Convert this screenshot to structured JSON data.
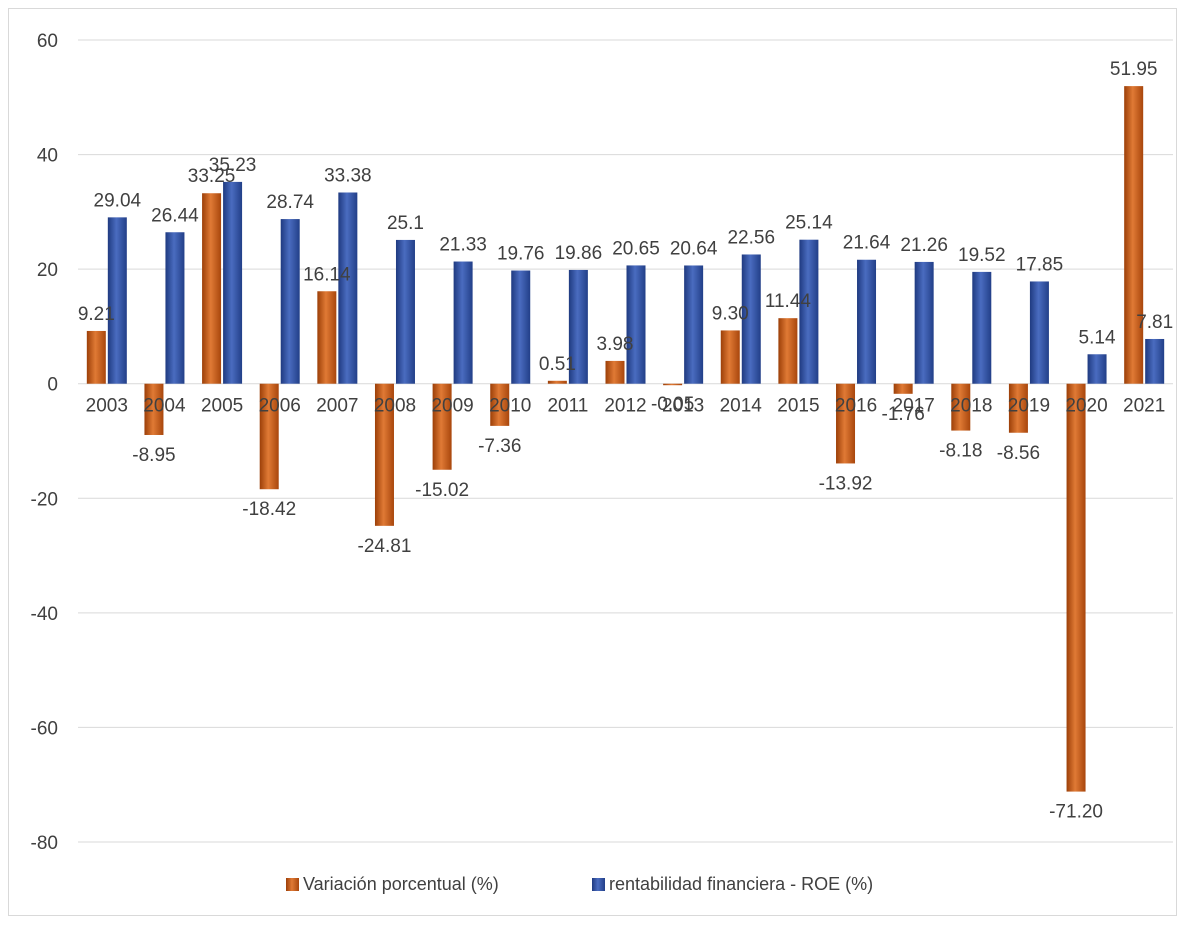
{
  "chart_data": {
    "type": "bar",
    "categories": [
      "2003",
      "2004",
      "2005",
      "2006",
      "2007",
      "2008",
      "2009",
      "2010",
      "2011",
      "2012",
      "2013",
      "2014",
      "2015",
      "2016",
      "2017",
      "2018",
      "2019",
      "2020",
      "2021"
    ],
    "series": [
      {
        "name": "Variación porcentual (%)",
        "color": "#c55a11",
        "values": [
          9.21,
          -8.95,
          33.25,
          -18.42,
          16.14,
          -24.81,
          -15.02,
          -7.36,
          0.51,
          3.98,
          -0.05,
          9.3,
          11.44,
          -13.92,
          -1.76,
          -8.18,
          -8.56,
          -71.2,
          51.95
        ],
        "labels": [
          "9.21",
          "-8.95",
          "33.25",
          "-18.42",
          "16.14",
          "-24.81",
          "-15.02",
          "-7.36",
          "0.51",
          "3.98",
          "-0.05",
          "9.30",
          "11.44",
          "-13.92",
          "-1.76",
          "-8.18",
          "-8.56",
          "-71.20",
          "51.95"
        ]
      },
      {
        "name": "rentabilidad financiera - ROE (%)",
        "color": "#2f4f9f",
        "values": [
          29.04,
          26.44,
          35.23,
          28.74,
          33.38,
          25.1,
          21.33,
          19.76,
          19.86,
          20.65,
          20.64,
          22.56,
          25.14,
          21.64,
          21.26,
          19.52,
          17.85,
          5.14,
          7.81
        ],
        "labels": [
          "29.04",
          "26.44",
          "35.23",
          "28.74",
          "33.38",
          "25.1",
          "21.33",
          "19.76",
          "19.86",
          "20.65",
          "20.64",
          "22.56",
          "25.14",
          "21.64",
          "21.26",
          "19.52",
          "17.85",
          "5.14",
          "7.81"
        ]
      }
    ],
    "ylim": [
      -80,
      60
    ],
    "yticks": [
      "60",
      "40",
      "20",
      "0",
      "-20",
      "-40",
      "-60",
      "-80"
    ],
    "ytick_values": [
      60,
      40,
      20,
      0,
      -20,
      -40,
      -60,
      -80
    ],
    "grid": true,
    "legend_position": "bottom"
  }
}
